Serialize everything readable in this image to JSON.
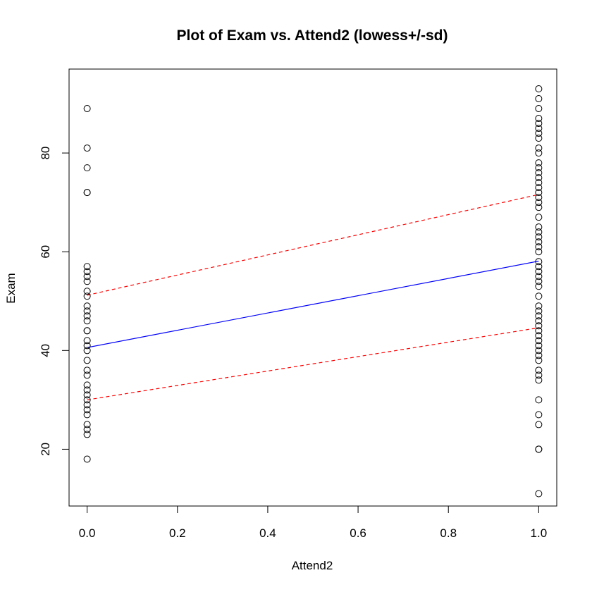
{
  "chart_data": {
    "type": "scatter",
    "title": "Plot of Exam vs. Attend2   (lowess+/-sd)",
    "xlabel": "Attend2",
    "ylabel": "Exam",
    "xlim": [
      -0.04,
      1.04
    ],
    "ylim": [
      8.5,
      97
    ],
    "x_ticks": [
      0.0,
      0.2,
      0.4,
      0.6,
      0.8,
      1.0
    ],
    "x_tick_labels": [
      "0.0",
      "0.2",
      "0.4",
      "0.6",
      "0.8",
      "1.0"
    ],
    "y_ticks": [
      20,
      40,
      60,
      80
    ],
    "y_tick_labels": [
      "20",
      "40",
      "60",
      "80"
    ],
    "grid": false,
    "legend": "none",
    "points": {
      "marker": "open-circle",
      "color": "#000000",
      "groups": [
        {
          "x": 0,
          "y": [
            89,
            81,
            77,
            72,
            72,
            57,
            56,
            55,
            54,
            52,
            51,
            49,
            48,
            47,
            46,
            44,
            44,
            42,
            41,
            40,
            38,
            36,
            35,
            33,
            32,
            31,
            30,
            29,
            28,
            27,
            25,
            24,
            23,
            18
          ]
        },
        {
          "x": 1,
          "y": [
            93,
            91,
            89,
            87,
            86,
            85,
            84,
            83,
            81,
            80,
            78,
            77,
            76,
            75,
            74,
            73,
            72,
            71,
            70,
            69,
            67,
            65,
            64,
            63,
            62,
            61,
            60,
            58,
            57,
            56,
            55,
            54,
            53,
            51,
            49,
            48,
            47,
            46,
            45,
            44,
            43,
            42,
            41,
            40,
            39,
            38,
            36,
            35,
            34,
            30,
            27,
            25,
            20,
            20,
            11
          ]
        }
      ]
    },
    "series": [
      {
        "style": "solid",
        "color": "#0000ff",
        "x": [
          0,
          1
        ],
        "y": [
          40.6,
          58.1
        ]
      },
      {
        "style": "dashed",
        "color": "#ff0000",
        "x": [
          0,
          1
        ],
        "y": [
          51.2,
          71.6
        ]
      },
      {
        "style": "dashed",
        "color": "#ff0000",
        "x": [
          0,
          1
        ],
        "y": [
          30.0,
          44.6
        ]
      }
    ]
  }
}
